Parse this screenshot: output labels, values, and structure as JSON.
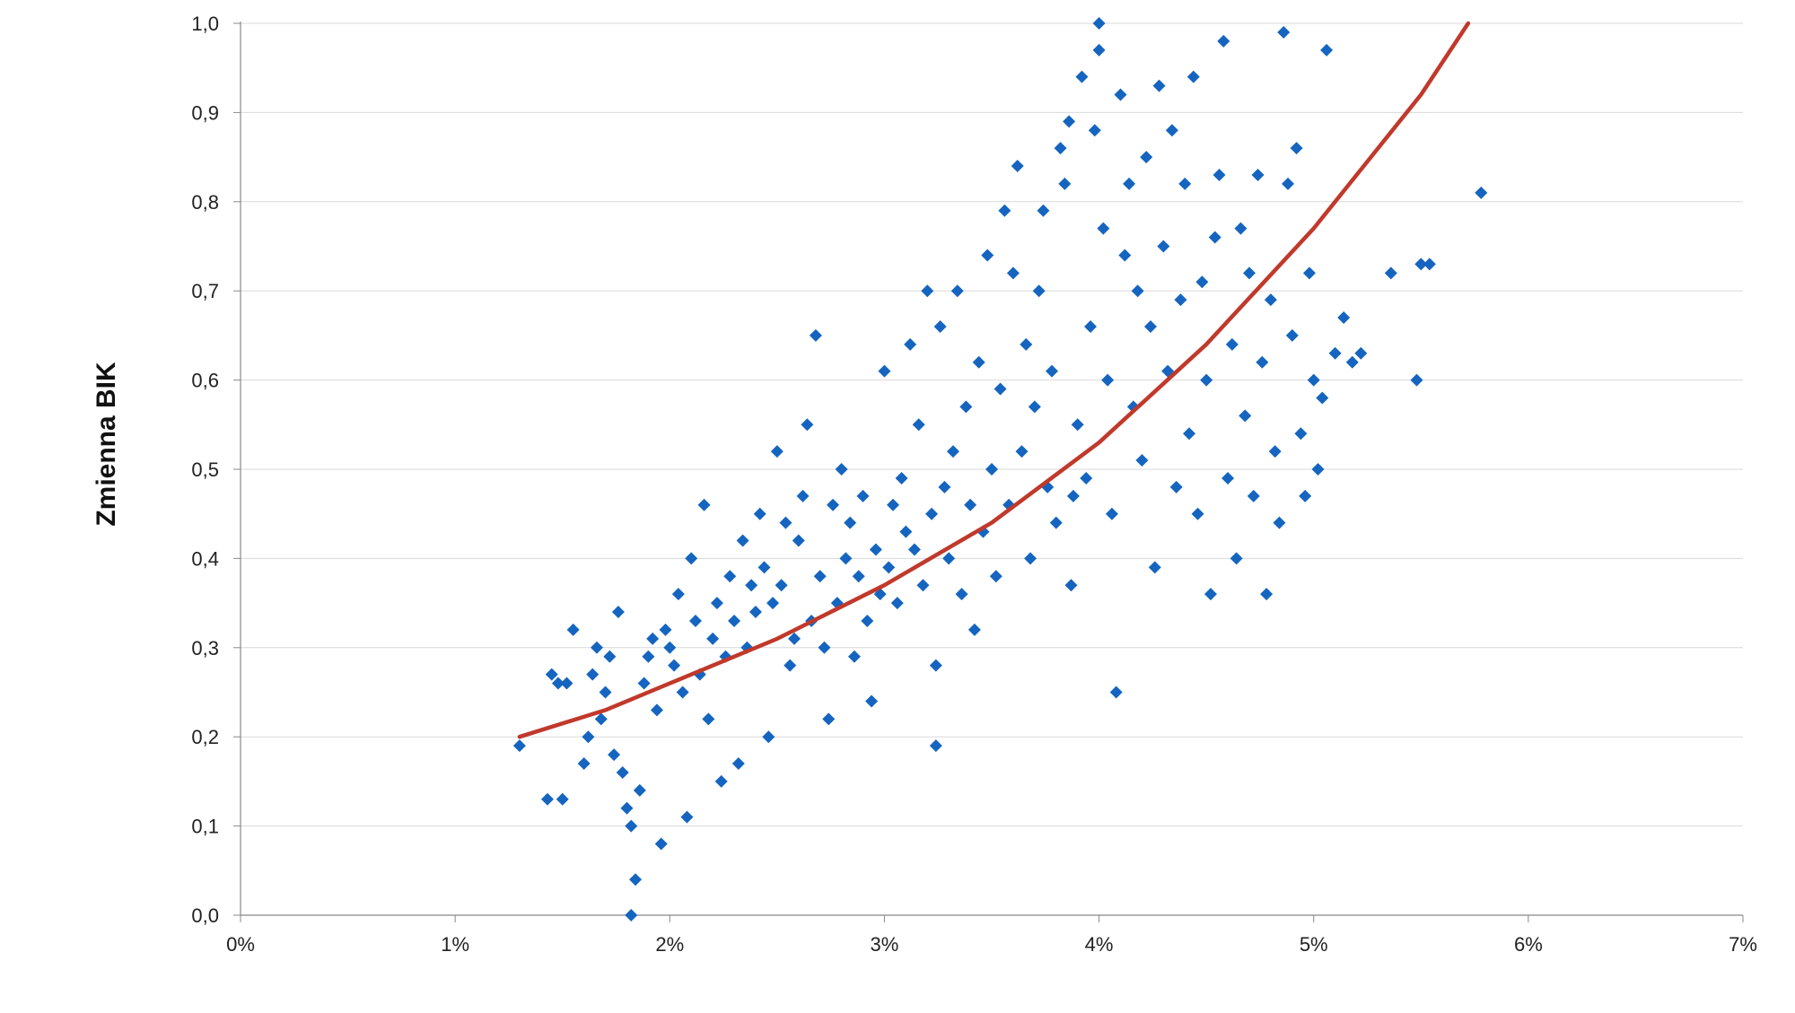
{
  "chart_data": {
    "type": "scatter",
    "title": "",
    "xlabel": "",
    "ylabel": "Zmienna BIK",
    "xlim": [
      0,
      7
    ],
    "ylim": [
      0,
      1.0
    ],
    "x_ticks": [
      "0%",
      "1%",
      "2%",
      "3%",
      "4%",
      "5%",
      "6%",
      "7%"
    ],
    "y_ticks": [
      "0,0",
      "0,1",
      "0,2",
      "0,3",
      "0,4",
      "0,5",
      "0,6",
      "0,7",
      "0,8",
      "0,9",
      "1,0"
    ],
    "grid": "horizontal",
    "legend": "none",
    "series": [
      {
        "marker": "diamond",
        "color": "#1565c0",
        "points": [
          [
            1.3,
            0.19
          ],
          [
            1.45,
            0.27
          ],
          [
            1.43,
            0.13
          ],
          [
            1.5,
            0.13
          ],
          [
            1.48,
            0.26
          ],
          [
            1.52,
            0.26
          ],
          [
            1.55,
            0.32
          ],
          [
            1.6,
            0.17
          ],
          [
            1.62,
            0.2
          ],
          [
            1.64,
            0.27
          ],
          [
            1.66,
            0.3
          ],
          [
            1.68,
            0.22
          ],
          [
            1.7,
            0.25
          ],
          [
            1.72,
            0.29
          ],
          [
            1.74,
            0.18
          ],
          [
            1.76,
            0.34
          ],
          [
            1.78,
            0.16
          ],
          [
            1.8,
            0.12
          ],
          [
            1.82,
            0.1
          ],
          [
            1.84,
            0.04
          ],
          [
            1.82,
            0.0
          ],
          [
            1.86,
            0.14
          ],
          [
            1.88,
            0.26
          ],
          [
            1.9,
            0.29
          ],
          [
            1.92,
            0.31
          ],
          [
            1.94,
            0.23
          ],
          [
            1.96,
            0.08
          ],
          [
            1.98,
            0.32
          ],
          [
            2.0,
            0.3
          ],
          [
            2.02,
            0.28
          ],
          [
            2.04,
            0.36
          ],
          [
            2.06,
            0.25
          ],
          [
            2.08,
            0.11
          ],
          [
            2.1,
            0.4
          ],
          [
            2.12,
            0.33
          ],
          [
            2.14,
            0.27
          ],
          [
            2.16,
            0.46
          ],
          [
            2.18,
            0.22
          ],
          [
            2.2,
            0.31
          ],
          [
            2.22,
            0.35
          ],
          [
            2.24,
            0.15
          ],
          [
            2.26,
            0.29
          ],
          [
            2.28,
            0.38
          ],
          [
            2.3,
            0.33
          ],
          [
            2.32,
            0.17
          ],
          [
            2.34,
            0.42
          ],
          [
            2.36,
            0.3
          ],
          [
            2.38,
            0.37
          ],
          [
            2.4,
            0.34
          ],
          [
            2.42,
            0.45
          ],
          [
            2.44,
            0.39
          ],
          [
            2.46,
            0.2
          ],
          [
            2.48,
            0.35
          ],
          [
            2.5,
            0.52
          ],
          [
            2.52,
            0.37
          ],
          [
            2.54,
            0.44
          ],
          [
            2.56,
            0.28
          ],
          [
            2.58,
            0.31
          ],
          [
            2.6,
            0.42
          ],
          [
            2.62,
            0.47
          ],
          [
            2.64,
            0.55
          ],
          [
            2.66,
            0.33
          ],
          [
            2.68,
            0.65
          ],
          [
            2.7,
            0.38
          ],
          [
            2.72,
            0.3
          ],
          [
            2.74,
            0.22
          ],
          [
            2.76,
            0.46
          ],
          [
            2.78,
            0.35
          ],
          [
            2.8,
            0.5
          ],
          [
            2.82,
            0.4
          ],
          [
            2.84,
            0.44
          ],
          [
            2.86,
            0.29
          ],
          [
            2.88,
            0.38
          ],
          [
            2.9,
            0.47
          ],
          [
            2.92,
            0.33
          ],
          [
            2.94,
            0.24
          ],
          [
            2.96,
            0.41
          ],
          [
            2.98,
            0.36
          ],
          [
            3.0,
            0.61
          ],
          [
            3.02,
            0.39
          ],
          [
            3.04,
            0.46
          ],
          [
            3.06,
            0.35
          ],
          [
            3.08,
            0.49
          ],
          [
            3.1,
            0.43
          ],
          [
            3.12,
            0.64
          ],
          [
            3.14,
            0.41
          ],
          [
            3.16,
            0.55
          ],
          [
            3.18,
            0.37
          ],
          [
            3.2,
            0.7
          ],
          [
            3.22,
            0.45
          ],
          [
            3.24,
            0.28
          ],
          [
            3.24,
            0.19
          ],
          [
            3.26,
            0.66
          ],
          [
            3.28,
            0.48
          ],
          [
            3.3,
            0.4
          ],
          [
            3.32,
            0.52
          ],
          [
            3.34,
            0.7
          ],
          [
            3.36,
            0.36
          ],
          [
            3.38,
            0.57
          ],
          [
            3.4,
            0.46
          ],
          [
            3.42,
            0.32
          ],
          [
            3.44,
            0.62
          ],
          [
            3.46,
            0.43
          ],
          [
            3.48,
            0.74
          ],
          [
            3.5,
            0.5
          ],
          [
            3.52,
            0.38
          ],
          [
            3.54,
            0.59
          ],
          [
            3.56,
            0.79
          ],
          [
            3.58,
            0.46
          ],
          [
            3.6,
            0.72
          ],
          [
            3.62,
            0.84
          ],
          [
            3.64,
            0.52
          ],
          [
            3.66,
            0.64
          ],
          [
            3.68,
            0.4
          ],
          [
            3.7,
            0.57
          ],
          [
            3.72,
            0.7
          ],
          [
            3.74,
            0.79
          ],
          [
            3.76,
            0.48
          ],
          [
            3.78,
            0.61
          ],
          [
            3.8,
            0.44
          ],
          [
            3.82,
            0.86
          ],
          [
            3.84,
            0.82
          ],
          [
            3.86,
            0.89
          ],
          [
            3.87,
            0.37
          ],
          [
            3.88,
            0.47
          ],
          [
            3.9,
            0.55
          ],
          [
            3.92,
            0.94
          ],
          [
            3.94,
            0.49
          ],
          [
            3.96,
            0.66
          ],
          [
            3.98,
            0.88
          ],
          [
            4.0,
            1.0
          ],
          [
            4.0,
            0.97
          ],
          [
            4.02,
            0.77
          ],
          [
            4.04,
            0.6
          ],
          [
            4.06,
            0.45
          ],
          [
            4.08,
            0.25
          ],
          [
            4.1,
            0.92
          ],
          [
            4.12,
            0.74
          ],
          [
            4.14,
            0.82
          ],
          [
            4.16,
            0.57
          ],
          [
            4.18,
            0.7
          ],
          [
            4.2,
            0.51
          ],
          [
            4.22,
            0.85
          ],
          [
            4.24,
            0.66
          ],
          [
            4.26,
            0.39
          ],
          [
            4.28,
            0.93
          ],
          [
            4.3,
            0.75
          ],
          [
            4.32,
            0.61
          ],
          [
            4.34,
            0.88
          ],
          [
            4.36,
            0.48
          ],
          [
            4.38,
            0.69
          ],
          [
            4.4,
            0.82
          ],
          [
            4.42,
            0.54
          ],
          [
            4.44,
            0.94
          ],
          [
            4.46,
            0.45
          ],
          [
            4.48,
            0.71
          ],
          [
            4.5,
            0.6
          ],
          [
            4.52,
            0.36
          ],
          [
            4.54,
            0.76
          ],
          [
            4.56,
            0.83
          ],
          [
            4.58,
            0.98
          ],
          [
            4.6,
            0.49
          ],
          [
            4.62,
            0.64
          ],
          [
            4.64,
            0.4
          ],
          [
            4.66,
            0.77
          ],
          [
            4.68,
            0.56
          ],
          [
            4.7,
            0.72
          ],
          [
            4.72,
            0.47
          ],
          [
            4.74,
            0.83
          ],
          [
            4.76,
            0.62
          ],
          [
            4.78,
            0.36
          ],
          [
            4.8,
            0.69
          ],
          [
            4.82,
            0.52
          ],
          [
            4.84,
            0.44
          ],
          [
            4.86,
            0.99
          ],
          [
            4.88,
            0.82
          ],
          [
            4.9,
            0.65
          ],
          [
            4.92,
            0.86
          ],
          [
            4.94,
            0.54
          ],
          [
            4.96,
            0.47
          ],
          [
            4.98,
            0.72
          ],
          [
            5.0,
            0.6
          ],
          [
            5.02,
            0.5
          ],
          [
            5.04,
            0.58
          ],
          [
            5.06,
            0.97
          ],
          [
            5.1,
            0.63
          ],
          [
            5.14,
            0.67
          ],
          [
            5.18,
            0.62
          ],
          [
            5.22,
            0.63
          ],
          [
            5.36,
            0.72
          ],
          [
            5.48,
            0.6
          ],
          [
            5.5,
            0.73
          ],
          [
            5.54,
            0.73
          ],
          [
            5.78,
            0.81
          ]
        ]
      }
    ],
    "trendline": {
      "type": "exponential",
      "color": "#c0392b",
      "points": [
        [
          1.3,
          0.2
        ],
        [
          1.7,
          0.23
        ],
        [
          2.0,
          0.26
        ],
        [
          2.5,
          0.31
        ],
        [
          3.0,
          0.37
        ],
        [
          3.5,
          0.44
        ],
        [
          4.0,
          0.53
        ],
        [
          4.5,
          0.64
        ],
        [
          5.0,
          0.77
        ],
        [
          5.5,
          0.92
        ],
        [
          5.72,
          1.0
        ]
      ]
    }
  }
}
